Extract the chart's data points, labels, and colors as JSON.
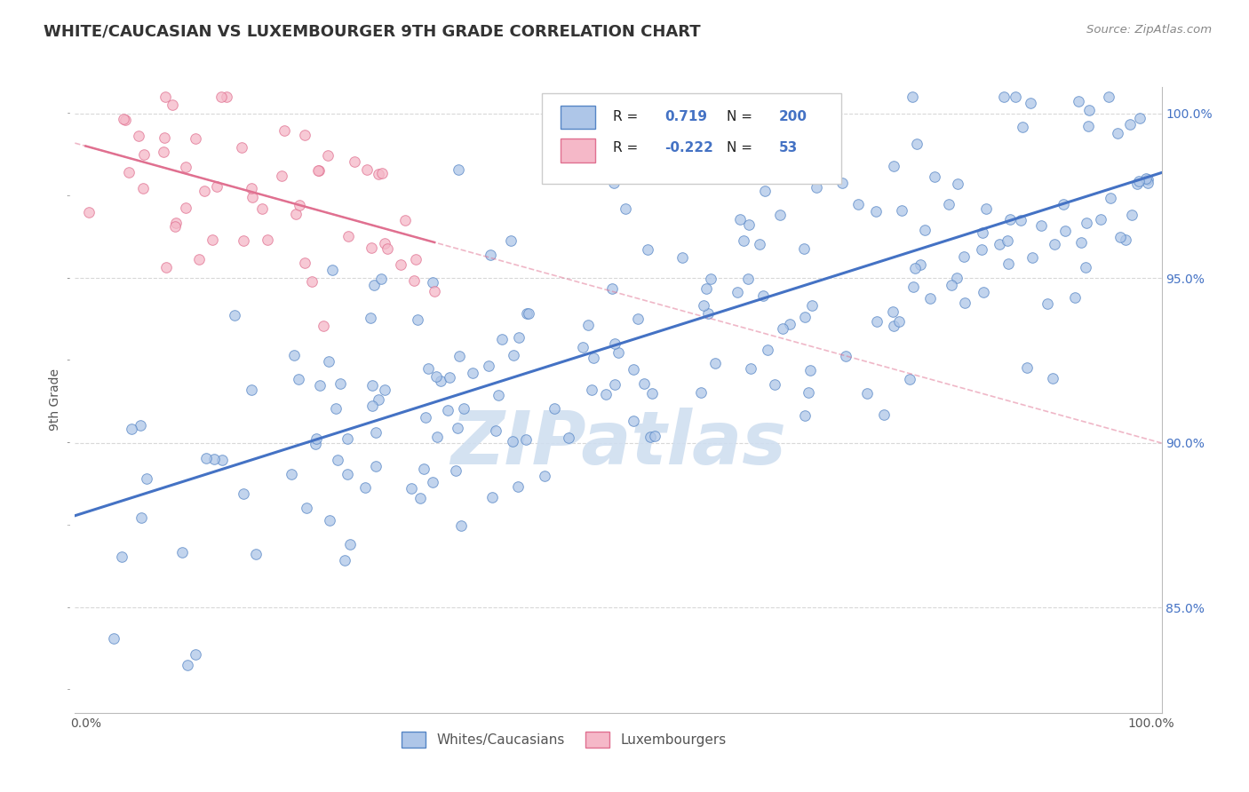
{
  "title": "WHITE/CAUCASIAN VS LUXEMBOURGER 9TH GRADE CORRELATION CHART",
  "source": "Source: ZipAtlas.com",
  "ylabel": "9th Grade",
  "legend_blue_r": "0.719",
  "legend_blue_n": "200",
  "legend_pink_r": "-0.222",
  "legend_pink_n": "53",
  "legend_label_blue": "Whites/Caucasians",
  "legend_label_pink": "Luxembourgers",
  "blue_fill": "#aec6e8",
  "blue_edge": "#5585c5",
  "pink_fill": "#f5b8c8",
  "pink_edge": "#e07090",
  "blue_line": "#4472c4",
  "pink_line": "#e07090",
  "text_blue": "#4472c4",
  "background": "#ffffff",
  "grid_color": "#d8d8d8",
  "watermark_color": "#d0dff0",
  "right_tick_color": "#4472c4",
  "y_min": 0.818,
  "y_max": 1.008,
  "x_min": -0.01,
  "x_max": 1.01,
  "y_ticks": [
    0.85,
    0.9,
    0.95,
    1.0
  ],
  "y_tick_labels": [
    "85.0%",
    "90.0%",
    "95.0%",
    "100.0%"
  ],
  "x_ticks": [
    0.0,
    0.25,
    0.5,
    0.75,
    1.0
  ],
  "x_tick_labels": [
    "0.0%",
    "",
    "",
    "",
    "100.0%"
  ],
  "blue_R": 0.719,
  "blue_N": 200,
  "pink_R": -0.222,
  "pink_N": 53
}
